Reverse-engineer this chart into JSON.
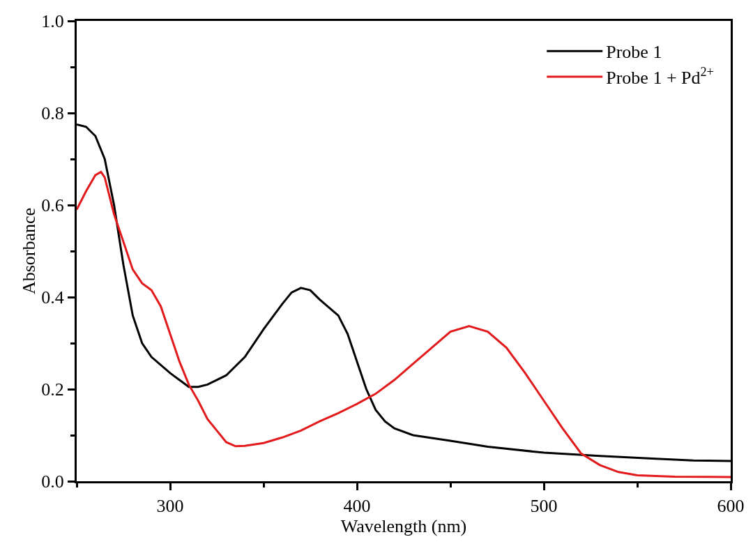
{
  "chart_data": {
    "type": "line",
    "xlabel": "Wavelength (nm)",
    "ylabel": "Absorbance",
    "xlim": [
      250,
      600
    ],
    "ylim": [
      0,
      1
    ],
    "xticks": [
      {
        "value": 250,
        "label": null
      },
      300,
      {
        "value": 350,
        "label": null
      },
      400,
      {
        "value": 450,
        "label": null
      },
      500,
      {
        "value": 550,
        "label": null
      },
      600
    ],
    "yticks": [
      "0.0",
      {
        "value": 0.1,
        "label": null
      },
      0.2,
      {
        "value": 0.3,
        "label": null
      },
      0.4,
      {
        "value": 0.5,
        "label": null
      },
      0.6,
      {
        "value": 0.7,
        "label": null
      },
      0.8,
      {
        "value": 0.9,
        "label": null
      },
      {
        "value": 1,
        "label": "1.0"
      }
    ],
    "grid": false,
    "legend": "top right",
    "marker": "none",
    "line_style": "solid",
    "series": [
      {
        "name": "Probe 1",
        "color": "#000000",
        "x": [
          250,
          255,
          260,
          265,
          270,
          275,
          280,
          285,
          290,
          300,
          305,
          310,
          315,
          320,
          330,
          340,
          350,
          360,
          365,
          370,
          375,
          380,
          390,
          395,
          400,
          405,
          410,
          415,
          420,
          430,
          450,
          470,
          500,
          530,
          560,
          580,
          600
        ],
        "values": [
          0.775,
          0.77,
          0.75,
          0.7,
          0.6,
          0.47,
          0.36,
          0.3,
          0.27,
          0.235,
          0.22,
          0.205,
          0.205,
          0.21,
          0.23,
          0.27,
          0.33,
          0.385,
          0.41,
          0.42,
          0.415,
          0.395,
          0.36,
          0.32,
          0.26,
          0.2,
          0.155,
          0.13,
          0.115,
          0.1,
          0.088,
          0.075,
          0.062,
          0.055,
          0.049,
          0.045,
          0.044
        ]
      },
      {
        "name": "Probe 1 + Pd$^{2+}$",
        "color": "#e31a1c",
        "x": [
          250,
          255,
          260,
          263,
          265,
          270,
          275,
          280,
          285,
          290,
          295,
          300,
          305,
          310,
          315,
          320,
          325,
          330,
          335,
          340,
          350,
          360,
          370,
          380,
          390,
          400,
          410,
          420,
          430,
          440,
          450,
          460,
          470,
          480,
          490,
          500,
          510,
          520,
          530,
          540,
          550,
          570,
          600
        ],
        "values": [
          0.59,
          0.63,
          0.665,
          0.672,
          0.66,
          0.58,
          0.52,
          0.46,
          0.43,
          0.415,
          0.38,
          0.32,
          0.26,
          0.21,
          0.175,
          0.135,
          0.11,
          0.085,
          0.076,
          0.077,
          0.083,
          0.095,
          0.11,
          0.13,
          0.148,
          0.168,
          0.19,
          0.22,
          0.255,
          0.29,
          0.325,
          0.337,
          0.325,
          0.29,
          0.235,
          0.175,
          0.115,
          0.06,
          0.035,
          0.02,
          0.013,
          0.01,
          0.009
        ]
      }
    ]
  }
}
